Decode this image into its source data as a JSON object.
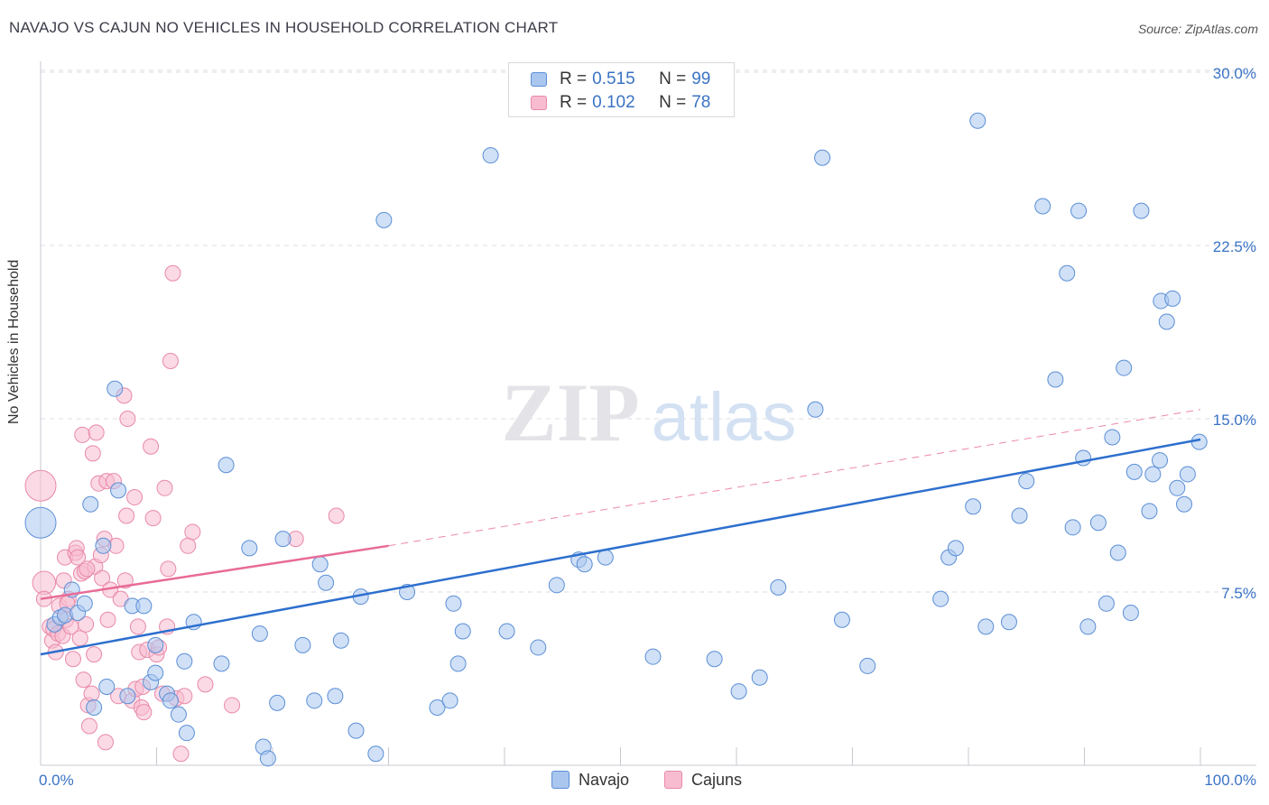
{
  "title": "NAVAJO VS CAJUN NO VEHICLES IN HOUSEHOLD CORRELATION CHART",
  "source": "Source: ZipAtlas.com",
  "watermark": {
    "zip": "ZIP",
    "atlas": "atlas"
  },
  "legend_top": [
    {
      "r_label": "R = ",
      "r_value": "0.515",
      "n_label": "N = ",
      "n_value": "99"
    },
    {
      "r_label": "R = ",
      "r_value": "0.102",
      "n_label": "N = ",
      "n_value": "78"
    }
  ],
  "chart_data": {
    "type": "scatter",
    "title": "NAVAJO VS CAJUN NO VEHICLES IN HOUSEHOLD CORRELATION CHART",
    "xlabel": "",
    "ylabel": "No Vehicles in Household",
    "xlim": [
      0,
      100
    ],
    "ylim": [
      0,
      31
    ],
    "x_tick_labels": [
      "0.0%",
      "100.0%"
    ],
    "y_ticks": [
      7.5,
      15.0,
      22.5,
      30.0
    ],
    "y_tick_labels": [
      "7.5%",
      "15.0%",
      "22.5%",
      "30.0%"
    ],
    "legend": [
      "Navajo",
      "Cajuns"
    ],
    "colors": {
      "navajo_fill": "#a9c6ef",
      "navajo_stroke": "#5b8fd6",
      "navajo_line": "#2d6fce",
      "cajun_fill": "#f8bcd0",
      "cajun_stroke": "#e889a8",
      "cajun_line": "#e86a97"
    },
    "series": [
      {
        "name": "Navajo",
        "r": 0.515,
        "n": 99,
        "trend": {
          "x": [
            0,
            100
          ],
          "y": [
            4.8,
            14.1
          ]
        },
        "points": [
          [
            0,
            10.5,
            2
          ],
          [
            1.2,
            6.1,
            1
          ],
          [
            1.7,
            6.4,
            1
          ],
          [
            2.1,
            6.5,
            1
          ],
          [
            2.7,
            7.6,
            1
          ],
          [
            3.2,
            6.6,
            1
          ],
          [
            3.8,
            7.0,
            1
          ],
          [
            4.3,
            11.3,
            1
          ],
          [
            4.6,
            2.5,
            1
          ],
          [
            5.7,
            3.4,
            1
          ],
          [
            5.4,
            9.5,
            1
          ],
          [
            6.4,
            16.3,
            1
          ],
          [
            6.7,
            11.9,
            1
          ],
          [
            7.5,
            3.0,
            1
          ],
          [
            7.9,
            6.9,
            1
          ],
          [
            8.9,
            6.9,
            1
          ],
          [
            9.5,
            3.6,
            1
          ],
          [
            9.9,
            4.0,
            1
          ],
          [
            9.9,
            5.2,
            1
          ],
          [
            10.9,
            3.1,
            1
          ],
          [
            11.2,
            2.8,
            1
          ],
          [
            11.9,
            2.2,
            1
          ],
          [
            12.4,
            4.5,
            1
          ],
          [
            12.6,
            1.4,
            1
          ],
          [
            13.2,
            6.2,
            1
          ],
          [
            15.6,
            4.4,
            1
          ],
          [
            16.0,
            13.0,
            1
          ],
          [
            18.0,
            9.4,
            1
          ],
          [
            18.9,
            5.7,
            1
          ],
          [
            19.2,
            0.8,
            1
          ],
          [
            19.6,
            0.3,
            1
          ],
          [
            20.4,
            2.7,
            1
          ],
          [
            20.9,
            9.8,
            1
          ],
          [
            22.6,
            5.2,
            1
          ],
          [
            23.6,
            2.8,
            1
          ],
          [
            24.1,
            8.7,
            1
          ],
          [
            24.6,
            7.9,
            1
          ],
          [
            25.4,
            3.0,
            1
          ],
          [
            25.9,
            5.4,
            1
          ],
          [
            27.2,
            1.5,
            1
          ],
          [
            27.6,
            7.3,
            1
          ],
          [
            28.9,
            0.5,
            1
          ],
          [
            29.6,
            23.6,
            1
          ],
          [
            31.6,
            7.5,
            1
          ],
          [
            34.2,
            2.5,
            1
          ],
          [
            35.3,
            2.8,
            1
          ],
          [
            35.6,
            7.0,
            1
          ],
          [
            36.0,
            4.4,
            1
          ],
          [
            36.4,
            5.8,
            1
          ],
          [
            38.8,
            26.4,
            1
          ],
          [
            40.2,
            5.8,
            1
          ],
          [
            42.9,
            5.1,
            1
          ],
          [
            46.4,
            8.9,
            1
          ],
          [
            46.9,
            8.7,
            1
          ],
          [
            48.7,
            9.0,
            1
          ],
          [
            52.8,
            4.7,
            1
          ],
          [
            58.1,
            4.6,
            1
          ],
          [
            60.2,
            3.2,
            1
          ],
          [
            62.0,
            3.8,
            1
          ],
          [
            63.6,
            7.7,
            1
          ],
          [
            67.4,
            26.3,
            1
          ],
          [
            69.1,
            6.3,
            1
          ],
          [
            71.3,
            4.3,
            1
          ],
          [
            77.6,
            7.2,
            1
          ],
          [
            78.3,
            9.0,
            1
          ],
          [
            78.9,
            9.4,
            1
          ],
          [
            80.4,
            11.2,
            1
          ],
          [
            80.8,
            27.9,
            1
          ],
          [
            81.5,
            6.0,
            1
          ],
          [
            83.5,
            6.2,
            1
          ],
          [
            84.4,
            10.8,
            1
          ],
          [
            85.0,
            12.3,
            1
          ],
          [
            86.4,
            24.2,
            1
          ],
          [
            87.5,
            16.7,
            1
          ],
          [
            88.5,
            21.3,
            1
          ],
          [
            89.0,
            10.3,
            1
          ],
          [
            89.5,
            24.0,
            1
          ],
          [
            89.9,
            13.3,
            1
          ],
          [
            90.3,
            6.0,
            1
          ],
          [
            91.2,
            10.5,
            1
          ],
          [
            91.9,
            7.0,
            1
          ],
          [
            92.4,
            14.2,
            1
          ],
          [
            92.9,
            9.2,
            1
          ],
          [
            93.4,
            17.2,
            1
          ],
          [
            94.0,
            6.6,
            1
          ],
          [
            94.3,
            12.7,
            1
          ],
          [
            94.9,
            24.0,
            1
          ],
          [
            95.6,
            11.0,
            1
          ],
          [
            95.9,
            12.6,
            1
          ],
          [
            96.5,
            13.2,
            1
          ],
          [
            96.6,
            20.1,
            1
          ],
          [
            97.1,
            19.2,
            1
          ],
          [
            97.6,
            20.2,
            1
          ],
          [
            98.0,
            12.0,
            1
          ],
          [
            98.6,
            11.3,
            1
          ],
          [
            98.9,
            12.6,
            1
          ],
          [
            99.9,
            14.0,
            1
          ],
          [
            44.5,
            7.8,
            1
          ],
          [
            66.8,
            15.4,
            1
          ]
        ]
      },
      {
        "name": "Cajuns",
        "r": 0.102,
        "n": 78,
        "trend": {
          "x": [
            0,
            30
          ],
          "y": [
            7.2,
            9.5
          ]
        },
        "trend_extension": {
          "x": [
            30,
            100
          ],
          "y": [
            9.5,
            15.4
          ]
        },
        "points": [
          [
            0,
            12.1,
            2
          ],
          [
            0.3,
            7.9,
            1.5
          ],
          [
            0.3,
            7.2,
            1
          ],
          [
            0.8,
            6.0,
            1
          ],
          [
            1.0,
            5.4,
            1
          ],
          [
            1.1,
            5.9,
            1
          ],
          [
            1.3,
            4.9,
            1
          ],
          [
            1.5,
            5.7,
            1
          ],
          [
            1.6,
            6.9,
            1
          ],
          [
            1.9,
            5.6,
            1
          ],
          [
            2.0,
            8.0,
            1
          ],
          [
            2.1,
            9.0,
            1
          ],
          [
            2.2,
            6.3,
            1
          ],
          [
            2.4,
            7.2,
            1
          ],
          [
            2.6,
            6.0,
            1
          ],
          [
            2.8,
            4.6,
            1
          ],
          [
            3.0,
            9.2,
            1
          ],
          [
            3.1,
            9.4,
            1
          ],
          [
            3.2,
            9.0,
            1
          ],
          [
            3.4,
            5.5,
            1
          ],
          [
            3.5,
            8.3,
            1
          ],
          [
            3.6,
            14.3,
            1
          ],
          [
            3.7,
            3.7,
            1
          ],
          [
            3.8,
            8.4,
            1
          ],
          [
            3.9,
            6.1,
            1
          ],
          [
            4.1,
            2.6,
            1
          ],
          [
            4.2,
            1.7,
            1
          ],
          [
            4.4,
            3.1,
            1
          ],
          [
            4.5,
            13.5,
            1
          ],
          [
            4.6,
            4.8,
            1
          ],
          [
            4.7,
            8.6,
            1
          ],
          [
            4.8,
            14.4,
            1
          ],
          [
            5.0,
            12.2,
            1
          ],
          [
            5.2,
            9.1,
            1
          ],
          [
            5.3,
            8.1,
            1
          ],
          [
            5.5,
            9.8,
            1
          ],
          [
            5.6,
            1.0,
            1
          ],
          [
            5.7,
            12.3,
            1
          ],
          [
            5.8,
            6.3,
            1
          ],
          [
            6.0,
            7.6,
            1
          ],
          [
            6.3,
            12.3,
            1
          ],
          [
            6.5,
            9.5,
            1
          ],
          [
            6.7,
            3.0,
            1
          ],
          [
            6.9,
            7.2,
            1
          ],
          [
            7.2,
            16.0,
            1
          ],
          [
            7.3,
            8.0,
            1
          ],
          [
            7.4,
            10.8,
            1
          ],
          [
            7.5,
            15.0,
            1
          ],
          [
            7.9,
            2.8,
            1
          ],
          [
            8.1,
            11.6,
            1
          ],
          [
            8.2,
            3.3,
            1
          ],
          [
            8.4,
            6.0,
            1
          ],
          [
            8.5,
            4.9,
            1
          ],
          [
            8.7,
            2.5,
            1
          ],
          [
            8.8,
            3.4,
            1
          ],
          [
            8.9,
            2.3,
            1
          ],
          [
            9.2,
            5.0,
            1
          ],
          [
            9.5,
            13.8,
            1
          ],
          [
            9.7,
            10.7,
            1
          ],
          [
            10.0,
            4.8,
            1
          ],
          [
            10.2,
            5.1,
            1
          ],
          [
            10.5,
            3.1,
            1
          ],
          [
            10.7,
            12.0,
            1
          ],
          [
            10.9,
            6.0,
            1
          ],
          [
            11.0,
            8.5,
            1
          ],
          [
            11.2,
            17.5,
            1
          ],
          [
            11.4,
            21.3,
            1
          ],
          [
            11.7,
            2.9,
            1
          ],
          [
            12.1,
            0.5,
            1
          ],
          [
            12.4,
            3.0,
            1
          ],
          [
            12.7,
            9.5,
            1
          ],
          [
            13.1,
            10.1,
            1
          ],
          [
            14.2,
            3.5,
            1
          ],
          [
            16.5,
            2.6,
            1
          ],
          [
            22.0,
            9.8,
            1
          ],
          [
            25.5,
            10.8,
            1
          ],
          [
            2.3,
            7.0,
            1
          ],
          [
            4.0,
            8.5,
            1
          ]
        ]
      }
    ]
  }
}
